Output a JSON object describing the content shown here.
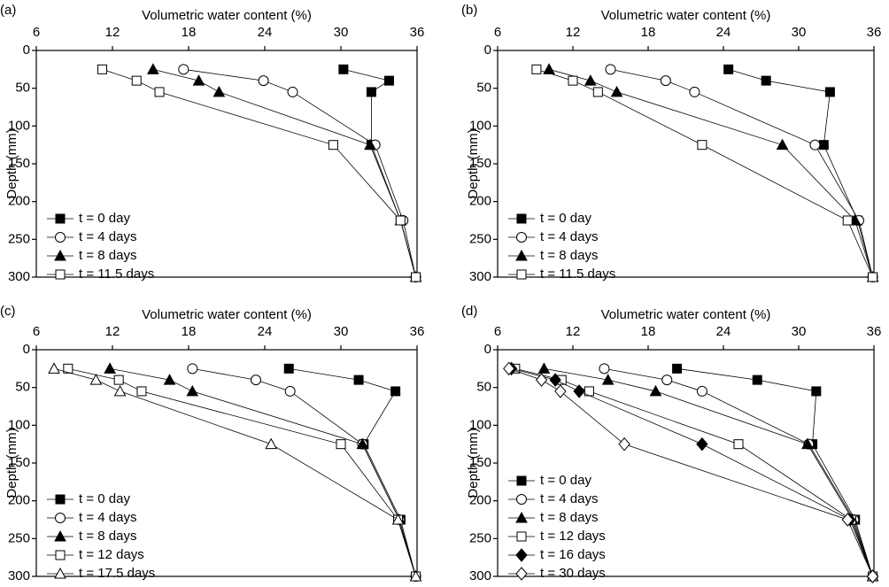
{
  "chart_data": [
    {
      "type": "line",
      "label": "(a)",
      "xlabel": "Volumetric water content (%)",
      "ylabel": "Depth (mm)",
      "xlim": [
        6,
        36
      ],
      "xticks": [
        6,
        12,
        18,
        24,
        30,
        36
      ],
      "ylim": [
        0,
        300
      ],
      "yticks": [
        0,
        50,
        100,
        150,
        200,
        250,
        300
      ],
      "y_inverted": true,
      "x_axis_position": "top",
      "legend": "lower left",
      "series": [
        {
          "name": "t = 0 day",
          "color": "#000000",
          "marker": "square",
          "filled": true,
          "x": [
            30.2,
            33.8,
            32.4,
            32.4,
            34.7,
            35.9
          ],
          "values": [
            25,
            40,
            55,
            125,
            225,
            300
          ]
        },
        {
          "name": "t = 4 days",
          "color": "#000000",
          "marker": "circle",
          "filled": false,
          "x": [
            17.6,
            23.9,
            26.2,
            32.7,
            34.9,
            35.9
          ],
          "values": [
            25,
            40,
            55,
            125,
            225,
            300
          ]
        },
        {
          "name": "t = 8 days",
          "color": "#000000",
          "marker": "triangle",
          "filled": true,
          "x": [
            15.2,
            18.8,
            20.4,
            32.3,
            34.7,
            35.9
          ],
          "values": [
            25,
            40,
            55,
            125,
            225,
            300
          ]
        },
        {
          "name": "t = 11.5 days",
          "color": "#000000",
          "marker": "square",
          "filled": false,
          "x": [
            11.2,
            13.9,
            15.7,
            29.4,
            34.7,
            35.9
          ],
          "values": [
            25,
            40,
            55,
            125,
            225,
            300
          ]
        }
      ]
    },
    {
      "type": "line",
      "label": "(b)",
      "xlabel": "Volumetric water content (%)",
      "ylabel": "Depth (mm)",
      "xlim": [
        6,
        36
      ],
      "xticks": [
        6,
        12,
        18,
        24,
        30,
        36
      ],
      "ylim": [
        0,
        300
      ],
      "yticks": [
        0,
        50,
        100,
        150,
        200,
        250,
        300
      ],
      "y_inverted": true,
      "x_axis_position": "top",
      "legend": "lower left",
      "series": [
        {
          "name": "t = 0 day",
          "color": "#000000",
          "marker": "square",
          "filled": true,
          "x": [
            24.4,
            27.4,
            32.5,
            32.0,
            34.7,
            35.9
          ],
          "values": [
            25,
            40,
            55,
            125,
            225,
            300
          ]
        },
        {
          "name": "t = 4 days",
          "color": "#000000",
          "marker": "circle",
          "filled": false,
          "x": [
            15.0,
            19.4,
            21.7,
            31.3,
            34.8,
            35.9
          ],
          "values": [
            25,
            40,
            55,
            125,
            225,
            300
          ]
        },
        {
          "name": "t = 8 days",
          "color": "#000000",
          "marker": "triangle",
          "filled": true,
          "x": [
            10.1,
            13.4,
            15.5,
            28.7,
            34.5,
            35.9
          ],
          "values": [
            25,
            40,
            55,
            125,
            225,
            300
          ]
        },
        {
          "name": "t = 11.5 days",
          "color": "#000000",
          "marker": "square",
          "filled": false,
          "x": [
            9.1,
            12.0,
            14.0,
            22.3,
            33.9,
            35.9
          ],
          "values": [
            25,
            40,
            55,
            125,
            225,
            300
          ]
        }
      ]
    },
    {
      "type": "line",
      "label": "(c)",
      "xlabel": "Volumetric water content (%)",
      "ylabel": "Depth (mm)",
      "xlim": [
        6,
        36
      ],
      "xticks": [
        6,
        12,
        18,
        24,
        30,
        36
      ],
      "ylim": [
        0,
        300
      ],
      "yticks": [
        0,
        50,
        100,
        150,
        200,
        250,
        300
      ],
      "y_inverted": true,
      "x_axis_position": "top",
      "legend": "lower left",
      "series": [
        {
          "name": "t = 0 day",
          "color": "#000000",
          "marker": "square",
          "filled": true,
          "x": [
            25.9,
            31.4,
            34.3,
            31.8,
            34.7,
            35.9
          ],
          "values": [
            25,
            40,
            55,
            125,
            225,
            300
          ]
        },
        {
          "name": "t = 4 days",
          "color": "#000000",
          "marker": "circle",
          "filled": false,
          "x": [
            18.3,
            23.3,
            26.0,
            31.7,
            34.6,
            35.9
          ],
          "values": [
            25,
            40,
            55,
            125,
            225,
            300
          ]
        },
        {
          "name": "t = 8 days",
          "color": "#000000",
          "marker": "triangle",
          "filled": true,
          "x": [
            11.8,
            16.5,
            18.3,
            31.7,
            34.6,
            35.9
          ],
          "values": [
            25,
            40,
            55,
            125,
            225,
            300
          ]
        },
        {
          "name": "t = 12 days",
          "color": "#000000",
          "marker": "square",
          "filled": false,
          "x": [
            8.5,
            12.5,
            14.3,
            30.0,
            34.5,
            35.9
          ],
          "values": [
            25,
            40,
            55,
            125,
            225,
            300
          ]
        },
        {
          "name": "t = 17.5 days",
          "color": "#000000",
          "marker": "triangle",
          "filled": false,
          "x": [
            7.4,
            10.7,
            12.6,
            24.5,
            34.5,
            35.9
          ],
          "values": [
            25,
            40,
            55,
            125,
            225,
            300
          ]
        }
      ]
    },
    {
      "type": "line",
      "label": "(d)",
      "xlabel": "Volumetric water content (%)",
      "ylabel": "Depth (mm)",
      "xlim": [
        6,
        36
      ],
      "xticks": [
        6,
        12,
        18,
        24,
        30,
        36
      ],
      "ylim": [
        0,
        300
      ],
      "yticks": [
        0,
        50,
        100,
        150,
        200,
        250,
        300
      ],
      "y_inverted": true,
      "x_axis_position": "top",
      "legend": "lower left",
      "series": [
        {
          "name": "t = 0 day",
          "color": "#000000",
          "marker": "square",
          "filled": true,
          "x": [
            20.3,
            26.7,
            31.4,
            31.1,
            34.5,
            35.9
          ],
          "values": [
            25,
            40,
            55,
            125,
            225,
            300
          ]
        },
        {
          "name": "t = 4 days",
          "color": "#000000",
          "marker": "circle",
          "filled": false,
          "x": [
            14.5,
            19.5,
            22.3,
            30.8,
            34.4,
            35.9
          ],
          "values": [
            25,
            40,
            55,
            125,
            225,
            300
          ]
        },
        {
          "name": "t = 8 days",
          "color": "#000000",
          "marker": "triangle",
          "filled": true,
          "x": [
            9.7,
            14.8,
            18.6,
            30.7,
            34.3,
            35.9
          ],
          "values": [
            25,
            40,
            55,
            125,
            225,
            300
          ]
        },
        {
          "name": "t = 12 days",
          "color": "#000000",
          "marker": "square",
          "filled": false,
          "x": [
            7.4,
            11.1,
            13.3,
            25.2,
            34.2,
            35.9
          ],
          "values": [
            25,
            40,
            55,
            125,
            225,
            300
          ]
        },
        {
          "name": "t = 16 days",
          "color": "#000000",
          "marker": "diamond",
          "filled": true,
          "x": [
            7.1,
            10.6,
            12.5,
            22.3,
            34.1,
            35.9
          ],
          "values": [
            25,
            40,
            55,
            125,
            225,
            300
          ]
        },
        {
          "name": "t = 30 days",
          "color": "#000000",
          "marker": "diamond",
          "filled": false,
          "x": [
            6.9,
            9.5,
            11.0,
            16.1,
            33.9,
            35.9
          ],
          "values": [
            25,
            40,
            55,
            125,
            225,
            300
          ]
        }
      ]
    }
  ]
}
